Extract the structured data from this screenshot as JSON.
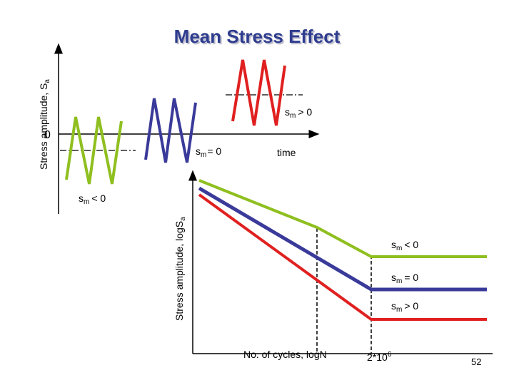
{
  "slide": {
    "title": "Mean Stress Effect",
    "page_number": "52"
  },
  "top_diagram": {
    "y_axis_label": "Stress amplitude, S",
    "y_axis_label_sub": "a",
    "origin_label": "0",
    "x_axis_label": "time",
    "waveforms": [
      {
        "label": "s",
        "label_sub": "m",
        "label_rel": "< 0",
        "color": "#8fbf1f"
      },
      {
        "label": "s",
        "label_sub": "m",
        "label_rel": "= 0",
        "color": "#3a3a9a"
      },
      {
        "label": "s",
        "label_sub": "m",
        "label_rel": "> 0",
        "color": "#e02020"
      }
    ]
  },
  "sn_diagram": {
    "y_axis_label": "Stress amplitude, logS",
    "y_axis_label_sub": "a",
    "x_axis_label": "No. of cycles, logN",
    "knee_label_base": "2*10",
    "knee_label_exp": "6",
    "curves": [
      {
        "label": "s",
        "label_sub": "m",
        "label_rel": "< 0",
        "color": "#8fbf1f"
      },
      {
        "label": "s",
        "label_sub": "m",
        "label_rel": "= 0",
        "color": "#3a3a9a"
      },
      {
        "label": "s",
        "label_sub": "m",
        "label_rel": "> 0",
        "color": "#e02020"
      }
    ]
  },
  "colors": {
    "title": "#2f3d8f",
    "compressive": "#8fbf1f",
    "zero_mean": "#3a3a9a",
    "tensile": "#e02020"
  }
}
